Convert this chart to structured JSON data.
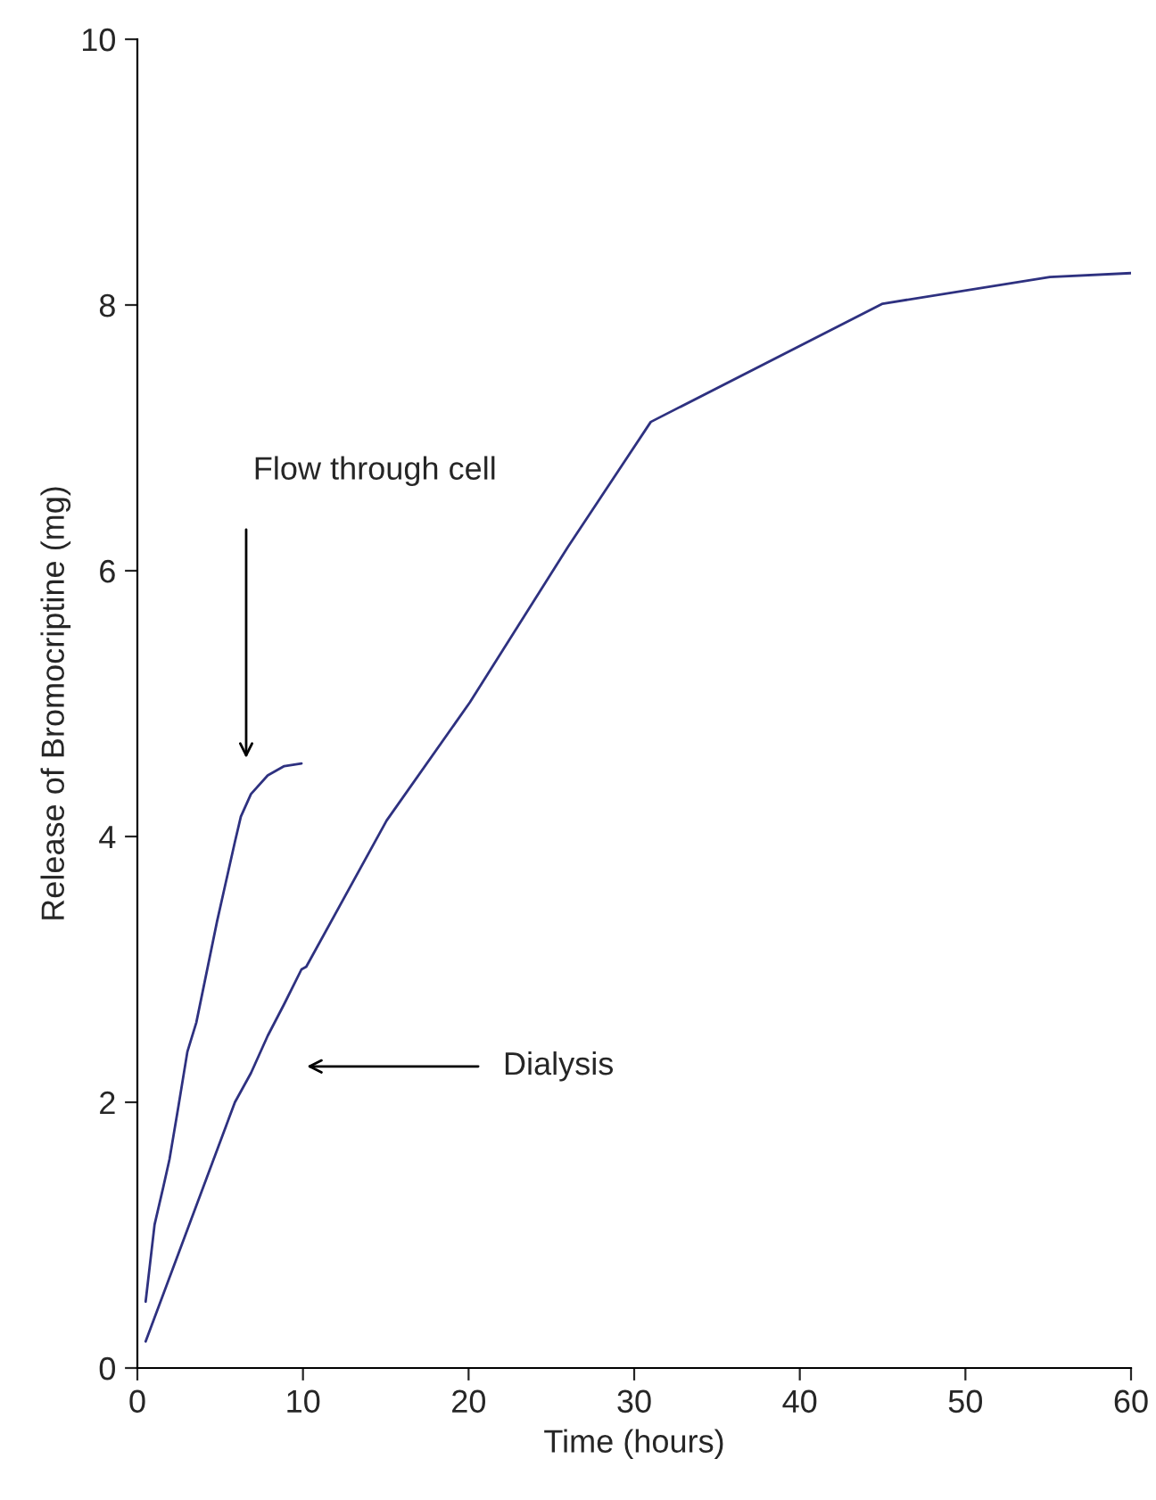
{
  "chart_data": {
    "type": "line",
    "xlabel": "Time (hours)",
    "ylabel": "Release of Bromocriptine (mg)",
    "xlim": [
      0,
      60
    ],
    "xticks": [
      0,
      10,
      20,
      30,
      40,
      50,
      60
    ],
    "ylim": [
      0,
      10
    ],
    "yticks": [
      0,
      2,
      4,
      6,
      8,
      10
    ],
    "grid": false,
    "legend": false,
    "marker": "none",
    "line_style": "solid",
    "series": [
      {
        "color": "#2e3180",
        "x": [
          0.5,
          1.04,
          1.58,
          1.94,
          2.48,
          3.02,
          3.56,
          4.81,
          5.89,
          6.25,
          6.86,
          7.87,
          8.87,
          9.91
        ],
        "values": [
          0.5,
          1.08,
          1.37,
          1.57,
          1.97,
          2.38,
          2.6,
          3.36,
          3.96,
          4.15,
          4.32,
          4.46,
          4.53,
          4.55
        ]
      },
      {
        "color": "#2e3180",
        "x": [
          0.5,
          5.89,
          6.86,
          7.87,
          8.87,
          9.91,
          10.2,
          15.05,
          20.08,
          26.0,
          31.0,
          45.0,
          55.1,
          60.0
        ],
        "values": [
          0.2,
          2.0,
          2.22,
          2.5,
          2.74,
          3.0,
          3.02,
          4.12,
          5.01,
          6.18,
          7.12,
          8.01,
          8.21,
          8.24
        ]
      }
    ],
    "annotations": [
      "Flow through cell",
      "Dialysis"
    ]
  }
}
